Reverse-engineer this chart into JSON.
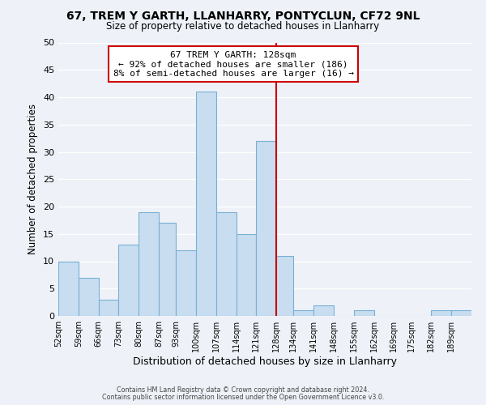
{
  "title_line1": "67, TREM Y GARTH, LLANHARRY, PONTYCLUN, CF72 9NL",
  "title_line2": "Size of property relative to detached houses in Llanharry",
  "xlabel": "Distribution of detached houses by size in Llanharry",
  "ylabel": "Number of detached properties",
  "bin_labels": [
    "52sqm",
    "59sqm",
    "66sqm",
    "73sqm",
    "80sqm",
    "87sqm",
    "93sqm",
    "100sqm",
    "107sqm",
    "114sqm",
    "121sqm",
    "128sqm",
    "134sqm",
    "141sqm",
    "148sqm",
    "155sqm",
    "162sqm",
    "169sqm",
    "175sqm",
    "182sqm",
    "189sqm"
  ],
  "bin_edges": [
    52,
    59,
    66,
    73,
    80,
    87,
    93,
    100,
    107,
    114,
    121,
    128,
    134,
    141,
    148,
    155,
    162,
    169,
    175,
    182,
    189,
    196
  ],
  "counts": [
    10,
    7,
    3,
    13,
    19,
    17,
    12,
    41,
    19,
    15,
    32,
    11,
    1,
    2,
    0,
    1,
    0,
    0,
    0,
    1,
    1
  ],
  "property_size": 128,
  "bar_color": "#c8ddf0",
  "bar_edgecolor": "#7aafd4",
  "vline_color": "#cc0000",
  "annotation_box_edgecolor": "#cc0000",
  "annotation_text_line1": "67 TREM Y GARTH: 128sqm",
  "annotation_text_line2": "← 92% of detached houses are smaller (186)",
  "annotation_text_line3": "8% of semi-detached houses are larger (16) →",
  "ylim": [
    0,
    50
  ],
  "yticks": [
    0,
    5,
    10,
    15,
    20,
    25,
    30,
    35,
    40,
    45,
    50
  ],
  "footer_line1": "Contains HM Land Registry data © Crown copyright and database right 2024.",
  "footer_line2": "Contains public sector information licensed under the Open Government Licence v3.0.",
  "background_color": "#eef2f8"
}
